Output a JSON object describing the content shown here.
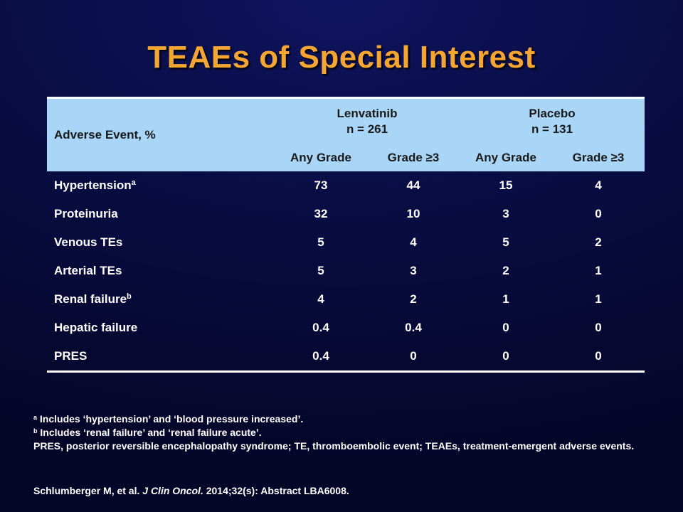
{
  "title": "TEAEs of Special Interest",
  "table": {
    "first_column_header": "Adverse Event, %",
    "groups": [
      {
        "name": "Lenvatinib",
        "n": "n = 261"
      },
      {
        "name": "Placebo",
        "n": "n = 131"
      }
    ],
    "subheaders": [
      "Any Grade",
      "Grade ≥3",
      "Any Grade",
      "Grade ≥3"
    ],
    "rows": [
      {
        "label": "Hypertension",
        "sup": "a",
        "values": [
          "73",
          "44",
          "15",
          "4"
        ]
      },
      {
        "label": "Proteinuria",
        "sup": "",
        "values": [
          "32",
          "10",
          "3",
          "0"
        ]
      },
      {
        "label": "Venous TEs",
        "sup": "",
        "values": [
          "5",
          "4",
          "5",
          "2"
        ]
      },
      {
        "label": "Arterial TEs",
        "sup": "",
        "values": [
          "5",
          "3",
          "2",
          "1"
        ]
      },
      {
        "label": "Renal failure",
        "sup": "b",
        "values": [
          "4",
          "2",
          "1",
          "1"
        ]
      },
      {
        "label": "Hepatic failure",
        "sup": "",
        "values": [
          "0.4",
          "0.4",
          "0",
          "0"
        ]
      },
      {
        "label": "PRES",
        "sup": "",
        "values": [
          "0.4",
          "0",
          "0",
          "0"
        ]
      }
    ]
  },
  "footnotes": {
    "a_mark": "a",
    "a_text": " Includes ‘hypertension’ and ‘blood pressure increased’.",
    "b_mark": "b",
    "b_text": " Includes ‘renal failure’ and ‘renal failure acute’.",
    "abbreviations": "PRES, posterior reversible encephalopathy syndrome; TE, thromboembolic event; TEAEs, treatment-emergent adverse events."
  },
  "citation": {
    "authors": "Schlumberger M, et al. ",
    "journal": "J Clin Oncol.",
    "details": " 2014;32(s): Abstract LBA6008."
  },
  "colors": {
    "title": "#f5a531",
    "header_bg": "#a9d6f7",
    "background": "#0a0e48"
  }
}
